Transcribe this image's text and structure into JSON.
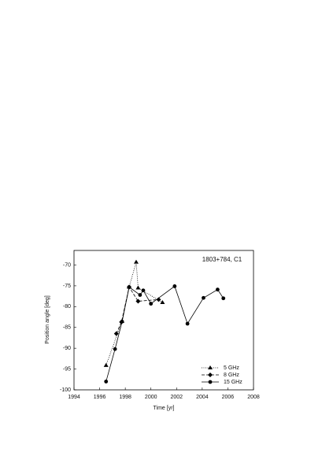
{
  "chart_data": {
    "type": "line",
    "annotation": "1803+784, C1",
    "xlabel": "Time [yr]",
    "ylabel": "Position angle [deg]",
    "xlim": [
      1994,
      2008
    ],
    "xticks": [
      1994,
      1996,
      1998,
      2000,
      2002,
      2004,
      2006,
      2008
    ],
    "ylim": [
      -100,
      -66.5
    ],
    "yticks": [
      -100,
      -95,
      -90,
      -85,
      -80,
      -75,
      -70
    ],
    "legend": "lower right",
    "series": [
      {
        "name": "5 GHz",
        "color": "#000000",
        "marker": "triangle",
        "line_style": "dotted",
        "x": [
          1996.5,
          1997.75,
          1998.3,
          1998.85,
          1999.0,
          2000.9
        ],
        "values": [
          -94.1,
          -83.5,
          -75.3,
          -69.3,
          -75.5,
          -79.0
        ]
      },
      {
        "name": "8 GHz",
        "color": "#000000",
        "marker": "diamond",
        "line_style": "dashed",
        "x": [
          1997.3,
          1997.7,
          1998.3,
          1999.0,
          2000.6
        ],
        "values": [
          -86.5,
          -83.7,
          -75.3,
          -78.7,
          -78.3
        ]
      },
      {
        "name": "15 GHz",
        "color": "#000000",
        "marker": "circle",
        "line_style": "solid",
        "x": [
          1996.5,
          1997.2,
          1997.75,
          1998.3,
          1999.15,
          1999.4,
          2000.0,
          2001.85,
          2002.85,
          2004.1,
          2005.2,
          2005.65
        ],
        "values": [
          -98.0,
          -90.2,
          -83.6,
          -75.3,
          -77.2,
          -76.1,
          -79.3,
          -75.1,
          -84.1,
          -77.9,
          -75.9,
          -78.0
        ]
      }
    ]
  }
}
